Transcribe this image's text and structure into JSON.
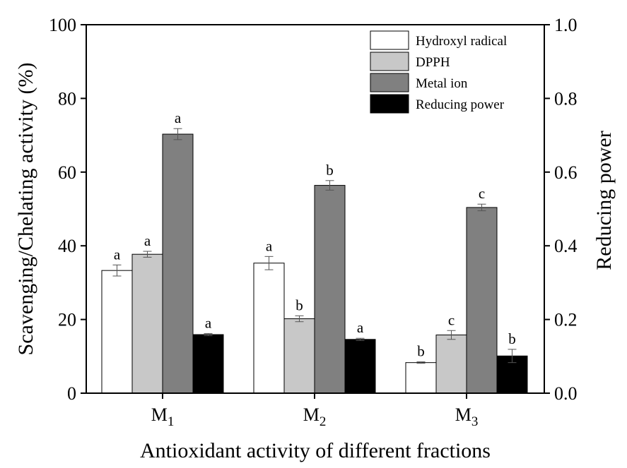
{
  "chart_data": {
    "type": "bar",
    "title": "",
    "xlabel": "Antioxidant activity of different fractions",
    "ylabel": "Scavenging/Chelating activity (%)",
    "ylabel_right": "Reducing power",
    "ylim": [
      0,
      100
    ],
    "ylim_right": [
      0,
      1.0
    ],
    "yticks": [
      "0",
      "20",
      "40",
      "60",
      "80",
      "100"
    ],
    "yticks_right": [
      "0.0",
      "0.2",
      "0.4",
      "0.6",
      "0.8",
      "1.0"
    ],
    "categories": [
      {
        "base": "M",
        "sub": "1"
      },
      {
        "base": "M",
        "sub": "2"
      },
      {
        "base": "M",
        "sub": "3"
      }
    ],
    "legend_position": "top-right",
    "series": [
      {
        "name": "Hydroxyl radical",
        "axis": "left",
        "color": "#ffffff",
        "values": [
          33.3,
          35.3,
          8.3
        ],
        "errors": [
          1.5,
          1.8,
          0.2
        ],
        "labels": [
          "a",
          "a",
          "b"
        ]
      },
      {
        "name": "DPPH",
        "axis": "left",
        "color": "#c8c8c8",
        "values": [
          37.7,
          20.2,
          15.8
        ],
        "errors": [
          0.8,
          0.8,
          1.2
        ],
        "labels": [
          "a",
          "b",
          "c"
        ]
      },
      {
        "name": "Metal ion",
        "axis": "left",
        "color": "#808080",
        "values": [
          70.3,
          56.4,
          50.4
        ],
        "errors": [
          1.5,
          1.3,
          0.9
        ],
        "labels": [
          "a",
          "b",
          "c"
        ]
      },
      {
        "name": "Reducing power",
        "axis": "right",
        "color": "#000000",
        "values": [
          0.159,
          0.146,
          0.101
        ],
        "errors": [
          0.003,
          0.003,
          0.018
        ],
        "labels": [
          "a",
          "a",
          "b"
        ]
      }
    ]
  }
}
